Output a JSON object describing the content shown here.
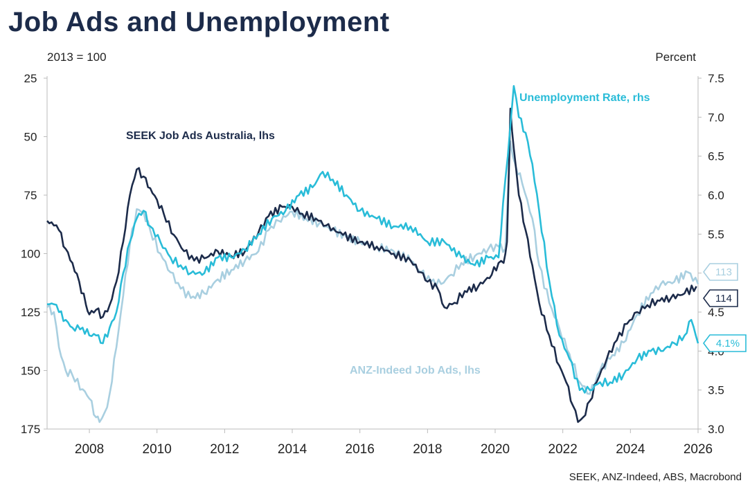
{
  "title": "Job Ads and Unemployment",
  "lhs_unit": "2013 = 100",
  "rhs_unit": "Percent",
  "source": "SEEK, ANZ-Indeed, ABS, Macrobond",
  "colors": {
    "seek": "#1c2b4a",
    "anz": "#a9cfe0",
    "unemp": "#29bcd8",
    "title": "#1c2b4a"
  },
  "chart_data": {
    "type": "line",
    "title": "Job Ads and Unemployment",
    "x_ticks": [
      "2008",
      "2010",
      "2012",
      "2014",
      "2016",
      "2018",
      "2020",
      "2022",
      "2024",
      "2026"
    ],
    "xlim": [
      2006.75,
      2026.0
    ],
    "lhs": {
      "ylim": [
        25,
        175
      ],
      "inverted": true,
      "ticks": [
        "25",
        "50",
        "75",
        "100",
        "125",
        "150",
        "175"
      ]
    },
    "rhs": {
      "ylim": [
        3.0,
        7.5
      ],
      "ticks": [
        "7.5",
        "7.0",
        "6.5",
        "6.0",
        "5.5",
        "5.0",
        "4.5",
        "4.0",
        "3.5",
        "3.0"
      ]
    },
    "series": [
      {
        "name": "SEEK Job Ads Australia, lhs",
        "axis": "lhs",
        "end_value": "114",
        "points": [
          [
            2006.75,
            86
          ],
          [
            2006.95,
            88
          ],
          [
            2007.1,
            90
          ],
          [
            2007.3,
            98
          ],
          [
            2007.5,
            104
          ],
          [
            2007.7,
            112
          ],
          [
            2007.9,
            122
          ],
          [
            2008.0,
            126
          ],
          [
            2008.2,
            124
          ],
          [
            2008.4,
            127
          ],
          [
            2008.6,
            122
          ],
          [
            2008.8,
            112
          ],
          [
            2009.0,
            95
          ],
          [
            2009.2,
            75
          ],
          [
            2009.4,
            64
          ],
          [
            2009.6,
            67
          ],
          [
            2009.8,
            72
          ],
          [
            2010.0,
            77
          ],
          [
            2010.2,
            83
          ],
          [
            2010.5,
            92
          ],
          [
            2010.8,
            99
          ],
          [
            2011.1,
            103
          ],
          [
            2011.4,
            102
          ],
          [
            2011.8,
            99
          ],
          [
            2012.2,
            101
          ],
          [
            2012.6,
            99
          ],
          [
            2013.0,
            91
          ],
          [
            2013.3,
            84
          ],
          [
            2013.7,
            80
          ],
          [
            2014.0,
            80
          ],
          [
            2014.3,
            83
          ],
          [
            2014.7,
            85
          ],
          [
            2015.0,
            88
          ],
          [
            2015.5,
            92
          ],
          [
            2016.0,
            95
          ],
          [
            2016.5,
            97
          ],
          [
            2017.0,
            100
          ],
          [
            2017.5,
            103
          ],
          [
            2017.8,
            108
          ],
          [
            2018.0,
            112
          ],
          [
            2018.3,
            115
          ],
          [
            2018.5,
            123
          ],
          [
            2018.8,
            121
          ],
          [
            2019.1,
            116
          ],
          [
            2019.5,
            114
          ],
          [
            2019.9,
            109
          ],
          [
            2020.1,
            104
          ],
          [
            2020.25,
            104
          ],
          [
            2020.35,
            95
          ],
          [
            2020.45,
            38
          ],
          [
            2020.55,
            55
          ],
          [
            2020.7,
            75
          ],
          [
            2020.9,
            90
          ],
          [
            2021.1,
            105
          ],
          [
            2021.3,
            121
          ],
          [
            2021.6,
            135
          ],
          [
            2021.9,
            148
          ],
          [
            2022.1,
            155
          ],
          [
            2022.3,
            165
          ],
          [
            2022.45,
            172
          ],
          [
            2022.6,
            170
          ],
          [
            2022.8,
            163
          ],
          [
            2023.0,
            155
          ],
          [
            2023.3,
            145
          ],
          [
            2023.6,
            137
          ],
          [
            2023.9,
            130
          ],
          [
            2024.2,
            125
          ],
          [
            2024.5,
            122
          ],
          [
            2024.8,
            120
          ],
          [
            2025.2,
            119
          ],
          [
            2025.6,
            117
          ],
          [
            2025.95,
            114
          ]
        ]
      },
      {
        "name": "ANZ-Indeed Job Ads, lhs",
        "axis": "lhs",
        "end_value": "113",
        "points": [
          [
            2006.75,
            123
          ],
          [
            2006.95,
            125
          ],
          [
            2007.1,
            140
          ],
          [
            2007.3,
            150
          ],
          [
            2007.5,
            152
          ],
          [
            2007.8,
            158
          ],
          [
            2008.0,
            162
          ],
          [
            2008.2,
            170
          ],
          [
            2008.3,
            172
          ],
          [
            2008.45,
            168
          ],
          [
            2008.6,
            160
          ],
          [
            2008.8,
            140
          ],
          [
            2009.0,
            118
          ],
          [
            2009.2,
            96
          ],
          [
            2009.4,
            81
          ],
          [
            2009.6,
            82
          ],
          [
            2009.8,
            90
          ],
          [
            2010.1,
            100
          ],
          [
            2010.4,
            108
          ],
          [
            2010.7,
            115
          ],
          [
            2011.0,
            119
          ],
          [
            2011.4,
            117
          ],
          [
            2011.8,
            111
          ],
          [
            2012.2,
            107
          ],
          [
            2012.6,
            103
          ],
          [
            2013.0,
            99
          ],
          [
            2013.3,
            90
          ],
          [
            2013.6,
            86
          ],
          [
            2014.0,
            82
          ],
          [
            2014.4,
            85
          ],
          [
            2014.8,
            87
          ],
          [
            2015.2,
            90
          ],
          [
            2015.6,
            93
          ],
          [
            2016.0,
            95
          ],
          [
            2016.5,
            97
          ],
          [
            2017.0,
            99
          ],
          [
            2017.5,
            103
          ],
          [
            2017.8,
            108
          ],
          [
            2018.1,
            112
          ],
          [
            2018.4,
            113
          ],
          [
            2018.7,
            109
          ],
          [
            2019.0,
            104
          ],
          [
            2019.4,
            101
          ],
          [
            2019.8,
            98
          ],
          [
            2020.1,
            97
          ],
          [
            2020.3,
            98
          ],
          [
            2020.45,
            52
          ],
          [
            2020.6,
            62
          ],
          [
            2020.8,
            70
          ],
          [
            2021.1,
            85
          ],
          [
            2021.3,
            105
          ],
          [
            2021.6,
            121
          ],
          [
            2021.9,
            132
          ],
          [
            2022.2,
            143
          ],
          [
            2022.5,
            155
          ],
          [
            2022.8,
            160
          ],
          [
            2023.1,
            150
          ],
          [
            2023.4,
            145
          ],
          [
            2023.8,
            138
          ],
          [
            2024.2,
            126
          ],
          [
            2024.6,
            117
          ],
          [
            2024.9,
            113
          ],
          [
            2025.3,
            112
          ],
          [
            2025.7,
            108
          ],
          [
            2026.0,
            113
          ]
        ]
      },
      {
        "name": "Unemployment Rate, rhs",
        "axis": "rhs",
        "end_value": "4.1%",
        "points": [
          [
            2006.75,
            4.6
          ],
          [
            2006.95,
            4.6
          ],
          [
            2007.1,
            4.5
          ],
          [
            2007.3,
            4.4
          ],
          [
            2007.5,
            4.3
          ],
          [
            2007.8,
            4.3
          ],
          [
            2008.0,
            4.2
          ],
          [
            2008.2,
            4.2
          ],
          [
            2008.4,
            4.1
          ],
          [
            2008.6,
            4.3
          ],
          [
            2008.8,
            4.5
          ],
          [
            2009.0,
            5.0
          ],
          [
            2009.2,
            5.4
          ],
          [
            2009.4,
            5.7
          ],
          [
            2009.6,
            5.8
          ],
          [
            2009.8,
            5.6
          ],
          [
            2010.1,
            5.4
          ],
          [
            2010.4,
            5.2
          ],
          [
            2010.7,
            5.1
          ],
          [
            2011.0,
            5.0
          ],
          [
            2011.4,
            5.0
          ],
          [
            2011.8,
            5.2
          ],
          [
            2012.2,
            5.2
          ],
          [
            2012.6,
            5.3
          ],
          [
            2013.0,
            5.5
          ],
          [
            2013.4,
            5.7
          ],
          [
            2013.8,
            5.8
          ],
          [
            2014.2,
            6.0
          ],
          [
            2014.6,
            6.1
          ],
          [
            2014.9,
            6.3
          ],
          [
            2015.2,
            6.2
          ],
          [
            2015.6,
            6.0
          ],
          [
            2016.0,
            5.8
          ],
          [
            2016.5,
            5.7
          ],
          [
            2017.0,
            5.6
          ],
          [
            2017.5,
            5.6
          ],
          [
            2018.0,
            5.4
          ],
          [
            2018.5,
            5.4
          ],
          [
            2019.0,
            5.2
          ],
          [
            2019.4,
            5.1
          ],
          [
            2019.8,
            5.2
          ],
          [
            2020.1,
            5.2
          ],
          [
            2020.3,
            6.2
          ],
          [
            2020.45,
            6.9
          ],
          [
            2020.55,
            7.4
          ],
          [
            2020.7,
            7.0
          ],
          [
            2020.9,
            6.8
          ],
          [
            2021.1,
            6.4
          ],
          [
            2021.3,
            5.8
          ],
          [
            2021.6,
            4.9
          ],
          [
            2021.9,
            4.2
          ],
          [
            2022.2,
            3.9
          ],
          [
            2022.5,
            3.5
          ],
          [
            2022.8,
            3.5
          ],
          [
            2023.1,
            3.6
          ],
          [
            2023.4,
            3.6
          ],
          [
            2023.8,
            3.7
          ],
          [
            2024.2,
            3.9
          ],
          [
            2024.6,
            4.0
          ],
          [
            2024.9,
            4.0
          ],
          [
            2025.3,
            4.1
          ],
          [
            2025.6,
            4.2
          ],
          [
            2025.8,
            4.4
          ],
          [
            2026.0,
            4.1
          ]
        ]
      }
    ]
  },
  "labels": {
    "seek": "SEEK Job Ads Australia, lhs",
    "anz": "ANZ-Indeed Job Ads, lhs",
    "unemp": "Unemployment Rate, rhs"
  }
}
